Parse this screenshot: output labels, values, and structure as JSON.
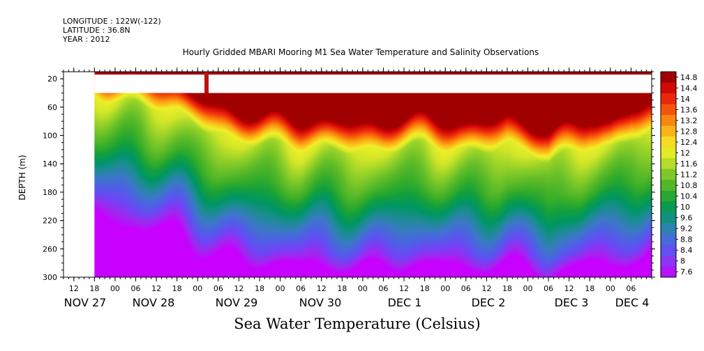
{
  "header": {
    "longitude": "LONGITUDE : 122W(-122)",
    "latitude": "LATITUDE : 36.8N",
    "year": "YEAR : 2012"
  },
  "chart_data": {
    "type": "heatmap",
    "title": "Hourly Gridded MBARI Mooring M1 Sea Water Temperature and Salinity Observations",
    "xlabel": "Sea Water Temperature (Celsius)",
    "ylabel": "DEPTH (m)",
    "x_start": "NOV 27 09:00",
    "x_end": "DEC 4 12:00",
    "data_start": "NOV 27 18:00",
    "ylim": [
      300,
      10
    ],
    "y_ticks": [
      20,
      60,
      100,
      140,
      180,
      220,
      260,
      300
    ],
    "x_hour_ticks": [
      "12",
      "18",
      "00",
      "06",
      "12",
      "18",
      "00",
      "06",
      "12",
      "18",
      "00",
      "06",
      "12",
      "18",
      "00",
      "06",
      "12",
      "18",
      "00",
      "06",
      "12",
      "18",
      "00",
      "06",
      "12",
      "18",
      "00",
      "06"
    ],
    "x_day_labels": [
      "NOV 27",
      "NOV 28",
      "NOV 29",
      "NOV 30",
      "DEC  1",
      "DEC  2",
      "DEC  3",
      "DEC  4"
    ],
    "colorbar_ticks": [
      "14.8",
      "14.4",
      "14",
      "13.6",
      "13.2",
      "12.8",
      "12.4",
      "12",
      "11.6",
      "11.2",
      "10.8",
      "10.4",
      "10",
      "9.6",
      "9.2",
      "8.8",
      "8.4",
      "8",
      "7.6"
    ],
    "colorbar_range": [
      7.6,
      15.0
    ],
    "no_data_depth_band_m": [
      14,
      40
    ],
    "surface_temperature": 14.2,
    "thermocline_depth_m": {
      "hours_since_start": [
        0,
        12,
        24,
        36,
        48,
        60,
        72,
        84,
        96,
        108,
        120,
        132,
        144,
        150,
        156,
        168
      ],
      "isotherm_12_depth": [
        40,
        55,
        70,
        95,
        110,
        120,
        115,
        120,
        115,
        120,
        110,
        140,
        110,
        115,
        100,
        95
      ]
    }
  },
  "colors": {
    "warm_max": "#a00000",
    "cold_min": "#c000ff"
  }
}
